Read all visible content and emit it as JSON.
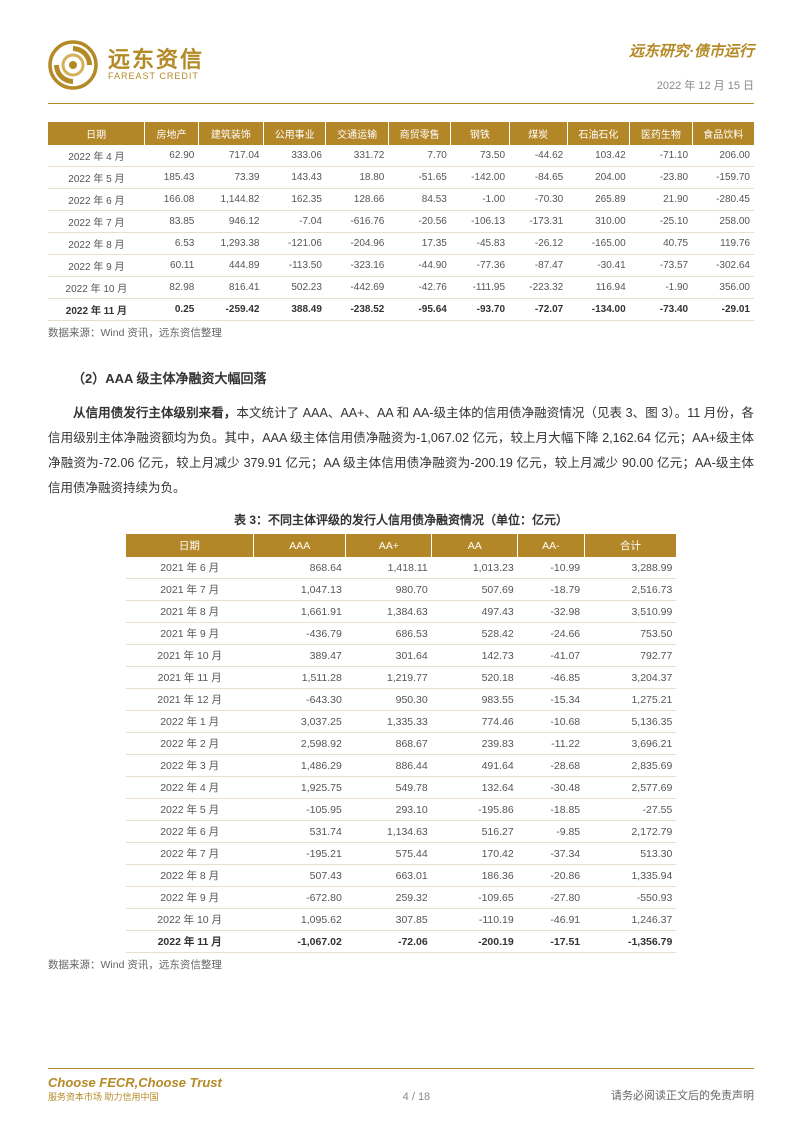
{
  "header": {
    "logo_cn": "远东资信",
    "logo_en": "FAREAST CREDIT",
    "logo_colors": {
      "outer": "#b48a26",
      "inner": "#d4b05a"
    },
    "title": "远东研究·债市运行",
    "date": "2022 年 12 月 15 日"
  },
  "table1": {
    "type": "table",
    "header_bg": "#b38627",
    "header_fg": "#ffffff",
    "columns": [
      "日期",
      "房地产",
      "建筑装饰",
      "公用事业",
      "交通运输",
      "商贸零售",
      "钢铁",
      "煤炭",
      "石油石化",
      "医药生物",
      "食品饮料"
    ],
    "rows": [
      [
        "2022 年 4 月",
        "62.90",
        "717.04",
        "333.06",
        "331.72",
        "7.70",
        "73.50",
        "-44.62",
        "103.42",
        "-71.10",
        "206.00"
      ],
      [
        "2022 年 5 月",
        "185.43",
        "73.39",
        "143.43",
        "18.80",
        "-51.65",
        "-142.00",
        "-84.65",
        "204.00",
        "-23.80",
        "-159.70"
      ],
      [
        "2022 年 6 月",
        "166.08",
        "1,144.82",
        "162.35",
        "128.66",
        "84.53",
        "-1.00",
        "-70.30",
        "265.89",
        "21.90",
        "-280.45"
      ],
      [
        "2022 年 7 月",
        "83.85",
        "946.12",
        "-7.04",
        "-616.76",
        "-20.56",
        "-106.13",
        "-173.31",
        "310.00",
        "-25.10",
        "258.00"
      ],
      [
        "2022 年 8 月",
        "6.53",
        "1,293.38",
        "-121.06",
        "-204.96",
        "17.35",
        "-45.83",
        "-26.12",
        "-165.00",
        "40.75",
        "119.76"
      ],
      [
        "2022 年 9 月",
        "60.11",
        "444.89",
        "-113.50",
        "-323.16",
        "-44.90",
        "-77.36",
        "-87.47",
        "-30.41",
        "-73.57",
        "-302.64"
      ],
      [
        "2022 年 10 月",
        "82.98",
        "816.41",
        "502.23",
        "-442.69",
        "-42.76",
        "-111.95",
        "-223.32",
        "116.94",
        "-1.90",
        "356.00"
      ],
      [
        "2022 年 11 月",
        "0.25",
        "-259.42",
        "388.49",
        "-238.52",
        "-95.64",
        "-93.70",
        "-72.07",
        "-134.00",
        "-73.40",
        "-29.01"
      ]
    ],
    "source": "数据来源：Wind 资讯，远东资信整理"
  },
  "section2": {
    "title": "（2）AAA 级主体净融资大幅回落",
    "paragraph_parts": {
      "bold1": "从信用债发行主体级别来看，",
      "rest": "本文统计了 AAA、AA+、AA 和 AA-级主体的信用债净融资情况（见表 3、图 3）。11 月份，各信用级别主体净融资额均为负。其中，AAA 级主体信用债净融资为-1,067.02 亿元，较上月大幅下降 2,162.64 亿元；AA+级主体净融资为-72.06 亿元，较上月减少 379.91 亿元；AA 级主体信用债净融资为-200.19 亿元，较上月减少 90.00 亿元；AA-级主体信用债净融资持续为负。"
    }
  },
  "table2": {
    "type": "table",
    "caption": "表 3：不同主体评级的发行人信用债净融资情况（单位：亿元）",
    "header_bg": "#b38627",
    "header_fg": "#ffffff",
    "columns": [
      "日期",
      "AAA",
      "AA+",
      "AA",
      "AA-",
      "合计"
    ],
    "rows": [
      [
        "2021 年 6 月",
        "868.64",
        "1,418.11",
        "1,013.23",
        "-10.99",
        "3,288.99"
      ],
      [
        "2021 年 7 月",
        "1,047.13",
        "980.70",
        "507.69",
        "-18.79",
        "2,516.73"
      ],
      [
        "2021 年 8 月",
        "1,661.91",
        "1,384.63",
        "497.43",
        "-32.98",
        "3,510.99"
      ],
      [
        "2021 年 9 月",
        "-436.79",
        "686.53",
        "528.42",
        "-24.66",
        "753.50"
      ],
      [
        "2021 年 10 月",
        "389.47",
        "301.64",
        "142.73",
        "-41.07",
        "792.77"
      ],
      [
        "2021 年 11 月",
        "1,511.28",
        "1,219.77",
        "520.18",
        "-46.85",
        "3,204.37"
      ],
      [
        "2021 年 12 月",
        "-643.30",
        "950.30",
        "983.55",
        "-15.34",
        "1,275.21"
      ],
      [
        "2022 年 1 月",
        "3,037.25",
        "1,335.33",
        "774.46",
        "-10.68",
        "5,136.35"
      ],
      [
        "2022 年 2 月",
        "2,598.92",
        "868.67",
        "239.83",
        "-11.22",
        "3,696.21"
      ],
      [
        "2022 年 3 月",
        "1,486.29",
        "886.44",
        "491.64",
        "-28.68",
        "2,835.69"
      ],
      [
        "2022 年 4 月",
        "1,925.75",
        "549.78",
        "132.64",
        "-30.48",
        "2,577.69"
      ],
      [
        "2022 年 5 月",
        "-105.95",
        "293.10",
        "-195.86",
        "-18.85",
        "-27.55"
      ],
      [
        "2022 年 6 月",
        "531.74",
        "1,134.63",
        "516.27",
        "-9.85",
        "2,172.79"
      ],
      [
        "2022 年 7 月",
        "-195.21",
        "575.44",
        "170.42",
        "-37.34",
        "513.30"
      ],
      [
        "2022 年 8 月",
        "507.43",
        "663.01",
        "186.36",
        "-20.86",
        "1,335.94"
      ],
      [
        "2022 年 9 月",
        "-672.80",
        "259.32",
        "-109.65",
        "-27.80",
        "-550.93"
      ],
      [
        "2022 年 10 月",
        "1,095.62",
        "307.85",
        "-110.19",
        "-46.91",
        "1,246.37"
      ],
      [
        "2022 年 11 月",
        "-1,067.02",
        "-72.06",
        "-200.19",
        "-17.51",
        "-1,356.79"
      ]
    ],
    "source": "数据来源：Wind 资讯，远东资信整理"
  },
  "footer": {
    "left_main": "Choose FECR,Choose Trust",
    "left_sub": "服务资本市场  助力信用中国",
    "center": "4 / 18",
    "right": "请务必阅读正文后的免责声明"
  }
}
